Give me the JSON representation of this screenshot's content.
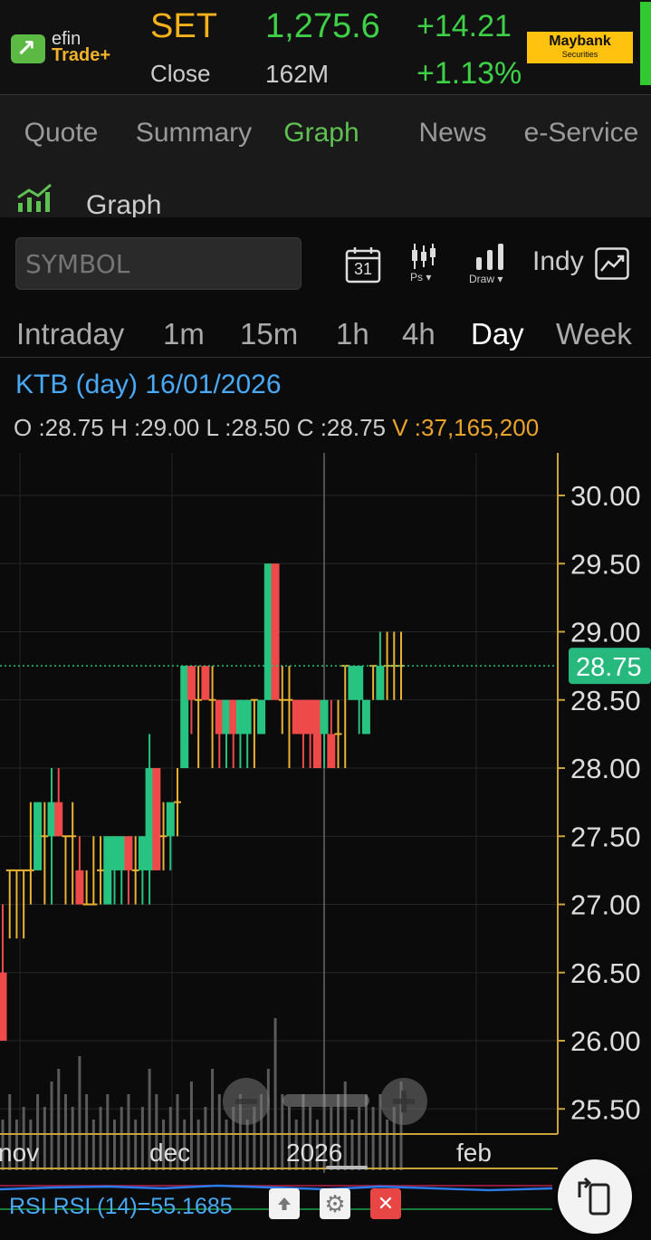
{
  "header": {
    "logo_top": "efin",
    "logo_bottom": "Trade+",
    "index_name": "SET",
    "status": "Close",
    "index_value": "1,275.6",
    "volume": "162M",
    "change": "+14.21",
    "change_pct": "+1.13%",
    "broker_name": "Maybank",
    "broker_sub": "Securities"
  },
  "tabs": [
    {
      "label": "Quote"
    },
    {
      "label": "Summary"
    },
    {
      "label": "Graph",
      "active": true
    },
    {
      "label": "News"
    },
    {
      "label": "e-Service"
    }
  ],
  "section": {
    "title": "Graph",
    "icon": "chart-icon"
  },
  "toolbar": {
    "symbol_placeholder": "SYMBOL",
    "calendar_day": "31",
    "ps_label": "Ps",
    "draw_label": "Draw",
    "indy_label": "Indy"
  },
  "periods": [
    {
      "label": "Intraday"
    },
    {
      "label": "1m"
    },
    {
      "label": "15m"
    },
    {
      "label": "1h"
    },
    {
      "label": "4h"
    },
    {
      "label": "Day",
      "active": true
    },
    {
      "label": "Week"
    }
  ],
  "stock": {
    "title": "KTB (day) 16/01/2026",
    "ohlc": "O :28.75 H :29.00 L :28.50 C :28.75",
    "volume": "V :37,165,200"
  },
  "chart_data": {
    "type": "candlestick",
    "symbol": "KTB",
    "interval": "day",
    "current_price": 28.75,
    "ylim": [
      25.2,
      30.3
    ],
    "y_ticks": [
      "30.00",
      "29.50",
      "29.00",
      "28.50",
      "28.00",
      "27.50",
      "27.00",
      "26.50",
      "26.00",
      "25.50"
    ],
    "x_labels": [
      "nov",
      "dec",
      "2026",
      "feb"
    ],
    "last_label": "28.75",
    "colors": {
      "up": "#27c381",
      "down": "#ef4a4a",
      "doji": "#e9b233",
      "price_line": "#27c381"
    },
    "candles": [
      [
        26.5,
        27.0,
        26.0,
        26.0
      ],
      [
        27.25,
        27.25,
        26.75,
        27.25
      ],
      [
        27.25,
        27.25,
        26.75,
        27.25
      ],
      [
        27.25,
        27.25,
        26.75,
        27.25
      ],
      [
        27.25,
        27.75,
        27.0,
        27.25
      ],
      [
        27.25,
        27.75,
        27.25,
        27.75
      ],
      [
        27.5,
        27.75,
        27.0,
        27.5
      ],
      [
        27.5,
        28.0,
        27.0,
        27.75
      ],
      [
        27.75,
        28.0,
        27.5,
        27.5
      ],
      [
        27.5,
        27.5,
        27.0,
        27.5
      ],
      [
        27.5,
        27.75,
        27.0,
        27.5
      ],
      [
        27.25,
        27.5,
        27.0,
        27.0
      ],
      [
        27.0,
        27.25,
        27.0,
        27.0
      ],
      [
        27.0,
        27.5,
        27.0,
        27.0
      ],
      [
        27.25,
        27.5,
        27.0,
        27.25
      ],
      [
        27.0,
        27.5,
        27.0,
        27.5
      ],
      [
        27.25,
        27.5,
        27.0,
        27.5
      ],
      [
        27.25,
        27.5,
        27.0,
        27.5
      ],
      [
        27.5,
        27.5,
        27.0,
        27.25
      ],
      [
        27.25,
        27.5,
        27.0,
        27.25
      ],
      [
        27.25,
        27.5,
        27.0,
        27.5
      ],
      [
        27.25,
        28.25,
        27.0,
        28.0
      ],
      [
        28.0,
        28.0,
        27.25,
        27.25
      ],
      [
        27.5,
        27.75,
        27.25,
        27.5
      ],
      [
        27.5,
        27.75,
        27.25,
        27.75
      ],
      [
        27.75,
        28.0,
        27.5,
        27.75
      ],
      [
        28.0,
        28.75,
        28.0,
        28.75
      ],
      [
        28.75,
        28.75,
        28.25,
        28.5
      ],
      [
        28.5,
        28.75,
        28.0,
        28.5
      ],
      [
        28.75,
        28.75,
        28.5,
        28.5
      ],
      [
        28.5,
        28.75,
        28.0,
        28.5
      ],
      [
        28.5,
        28.5,
        28.0,
        28.25
      ],
      [
        28.25,
        28.5,
        28.0,
        28.5
      ],
      [
        28.5,
        28.5,
        28.0,
        28.25
      ],
      [
        28.25,
        28.5,
        28.0,
        28.5
      ],
      [
        28.25,
        28.5,
        28.0,
        28.5
      ],
      [
        28.5,
        28.5,
        28.0,
        28.5
      ],
      [
        28.25,
        28.5,
        28.25,
        28.5
      ],
      [
        28.5,
        29.5,
        28.5,
        29.5
      ],
      [
        29.5,
        29.5,
        28.5,
        28.5
      ],
      [
        28.5,
        28.75,
        28.25,
        28.5
      ],
      [
        28.5,
        28.75,
        28.0,
        28.5
      ],
      [
        28.5,
        28.5,
        28.25,
        28.25
      ],
      [
        28.5,
        28.5,
        28.0,
        28.25
      ],
      [
        28.5,
        28.5,
        28.0,
        28.25
      ],
      [
        28.5,
        28.5,
        28.0,
        28.0
      ],
      [
        28.25,
        28.5,
        28.0,
        28.5
      ],
      [
        28.25,
        28.5,
        28.0,
        28.0
      ],
      [
        28.25,
        28.5,
        28.0,
        28.25
      ],
      [
        28.75,
        28.75,
        28.0,
        28.75
      ],
      [
        28.5,
        28.75,
        28.5,
        28.75
      ],
      [
        28.5,
        28.75,
        28.25,
        28.75
      ],
      [
        28.25,
        28.5,
        28.25,
        28.5
      ],
      [
        28.75,
        28.75,
        28.5,
        28.75
      ],
      [
        28.5,
        29.0,
        28.5,
        28.75
      ],
      [
        28.75,
        29.0,
        28.5,
        28.75
      ],
      [
        28.75,
        29.0,
        28.5,
        28.75
      ],
      [
        28.75,
        29.0,
        28.5,
        28.75
      ]
    ],
    "volumes": [
      2,
      3,
      2,
      2.5,
      2,
      3,
      2.5,
      3.5,
      4,
      3,
      2.5,
      4.5,
      3,
      2,
      2.5,
      3,
      2,
      2.5,
      3,
      2,
      2.5,
      4,
      3,
      2,
      2.5,
      3,
      2,
      3.5,
      2,
      2.5,
      4,
      3,
      2,
      2.5,
      3,
      2,
      2.5,
      3,
      4,
      6,
      3,
      2.5,
      2,
      3,
      2.5,
      2,
      3,
      2.5,
      3,
      3.5,
      2,
      2.5,
      3,
      2.5,
      3,
      2,
      2.5,
      3.5
    ]
  },
  "rsi": {
    "label": "RSI RSI (14)=55.1685"
  }
}
